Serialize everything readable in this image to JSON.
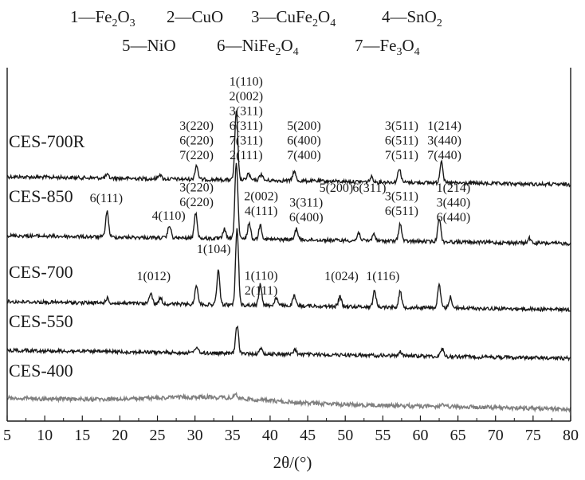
{
  "chart_data": {
    "type": "line",
    "xlabel": "2θ/(°)",
    "ylabel": "",
    "xlim": [
      5,
      80
    ],
    "x_ticks": [
      5,
      10,
      15,
      20,
      25,
      30,
      35,
      40,
      45,
      50,
      55,
      60,
      65,
      70,
      75,
      80
    ],
    "legend": {
      "placement": "top",
      "entries": [
        {
          "num": "1",
          "base": "Fe",
          "sub1": "2",
          "mid": "O",
          "sub2": "3"
        },
        {
          "num": "2",
          "base": "CuO",
          "sub1": "",
          "mid": "",
          "sub2": ""
        },
        {
          "num": "3",
          "base": "CuFe",
          "sub1": "2",
          "mid": "O",
          "sub2": "4"
        },
        {
          "num": "4",
          "base": "SnO",
          "sub1": "2",
          "mid": "",
          "sub2": ""
        },
        {
          "num": "5",
          "base": "NiO",
          "sub1": "",
          "mid": "",
          "sub2": ""
        },
        {
          "num": "6",
          "base": "NiFe",
          "sub1": "2",
          "mid": "O",
          "sub2": "4"
        },
        {
          "num": "7",
          "base": "Fe",
          "sub1": "3",
          "mid": "O",
          "sub2": "4"
        }
      ]
    },
    "series": [
      {
        "name": "CES-700R",
        "color": "#1a1a1a",
        "peaks": [
          [
            18.3,
            4
          ],
          [
            25.3,
            6
          ],
          [
            30.2,
            18
          ],
          [
            35.5,
            85
          ],
          [
            37.1,
            8
          ],
          [
            38.8,
            8
          ],
          [
            43.2,
            12
          ],
          [
            53.5,
            6
          ],
          [
            57.2,
            18
          ],
          [
            62.8,
            28
          ]
        ],
        "labels": [
          {
            "x": 30.2,
            "lines": [
              "3(220)",
              "6(220)",
              "7(220)"
            ]
          },
          {
            "x": 36.8,
            "lines": [
              "1(110)",
              "2(002)",
              "3(311)",
              "6(311)",
              "7(311)",
              "2(111)"
            ]
          },
          {
            "x": 44.5,
            "lines": [
              "5(200)",
              "6(400)",
              "7(400)"
            ]
          },
          {
            "x": 57.5,
            "lines": [
              "3(511)",
              "6(511)",
              "7(511)"
            ]
          },
          {
            "x": 63.2,
            "lines": [
              "1(214)",
              "3(440)",
              "7(440)"
            ]
          }
        ]
      },
      {
        "name": "CES-850",
        "color": "#1a1a1a",
        "peaks": [
          [
            18.3,
            32
          ],
          [
            26.6,
            16
          ],
          [
            30.1,
            32
          ],
          [
            33.9,
            12
          ],
          [
            35.5,
            95
          ],
          [
            37.2,
            20
          ],
          [
            38.7,
            18
          ],
          [
            43.5,
            14
          ],
          [
            51.8,
            10
          ],
          [
            53.8,
            9
          ],
          [
            57.3,
            22
          ],
          [
            62.5,
            30
          ],
          [
            74.5,
            6
          ]
        ],
        "labels": [
          {
            "x": 18.2,
            "lines": [
              "6(111)"
            ]
          },
          {
            "x": 26.5,
            "lines": [
              "4(110)"
            ]
          },
          {
            "x": 30.2,
            "lines": [
              "3(220)",
              "6(220)"
            ]
          },
          {
            "x": 38.8,
            "lines": [
              "2(002)",
              "4(111)"
            ]
          },
          {
            "x": 44.8,
            "lines": [
              "3(311)",
              "6(400)"
            ]
          },
          {
            "x": 48.8,
            "lines": [
              "5(200)"
            ]
          },
          {
            "x": 53.2,
            "lines": [
              "6(311)"
            ]
          },
          {
            "x": 57.5,
            "lines": [
              "3(511)",
              "6(511)"
            ]
          },
          {
            "x": 64.4,
            "lines": [
              "1(214)",
              "3(440)",
              "6(440)"
            ]
          }
        ]
      },
      {
        "name": "CES-700",
        "color": "#1a1a1a",
        "peaks": [
          [
            18.3,
            6
          ],
          [
            24.1,
            14
          ],
          [
            25.4,
            8
          ],
          [
            30.2,
            25
          ],
          [
            33.1,
            42
          ],
          [
            35.6,
            95
          ],
          [
            38.7,
            26
          ],
          [
            40.8,
            10
          ],
          [
            43.2,
            12
          ],
          [
            49.3,
            12
          ],
          [
            53.9,
            20
          ],
          [
            57.3,
            20
          ],
          [
            62.5,
            28
          ],
          [
            64.0,
            14
          ]
        ],
        "labels": [
          {
            "x": 24.5,
            "lines": [
              "1(012)"
            ]
          },
          {
            "x": 32.5,
            "lines": [
              "1(104)"
            ]
          },
          {
            "x": 38.8,
            "lines": [
              "1(110)",
              "2(111)"
            ]
          },
          {
            "x": 49.5,
            "lines": [
              "1(024)"
            ]
          },
          {
            "x": 55.0,
            "lines": [
              "1(116)"
            ]
          }
        ]
      },
      {
        "name": "CES-550",
        "color": "#1a1a1a",
        "peaks": [
          [
            30.2,
            8
          ],
          [
            35.6,
            34
          ],
          [
            38.8,
            6
          ],
          [
            43.3,
            6
          ],
          [
            57.3,
            6
          ],
          [
            62.9,
            10
          ]
        ],
        "labels": []
      },
      {
        "name": "CES-400",
        "color": "#808080",
        "peaks": [
          [
            35.4,
            6
          ],
          [
            62.9,
            2
          ]
        ],
        "labels": []
      }
    ]
  }
}
